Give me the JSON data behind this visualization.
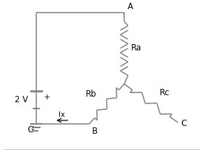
{
  "background_color": "#ffffff",
  "line_color": "#7f7f7f",
  "text_color": "#000000",
  "label_A": "A",
  "label_B": "B",
  "label_C": "C",
  "label_G": "G",
  "label_Ra": "Ra",
  "label_Rb": "Rb",
  "label_Rc": "Rc",
  "label_V": "2 V",
  "label_plus": "+",
  "label_Ix": "Ix",
  "figsize": [
    2.91,
    2.2
  ],
  "dpi": 100
}
